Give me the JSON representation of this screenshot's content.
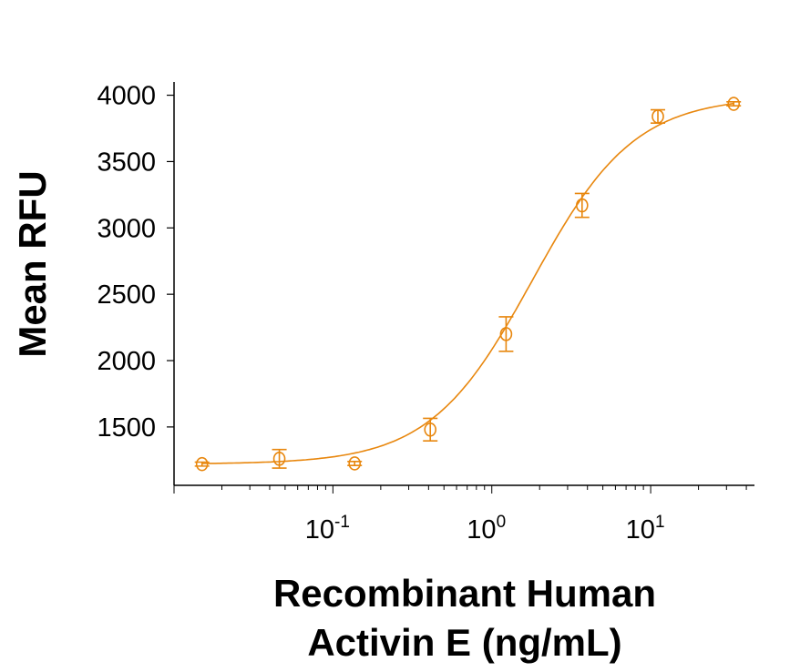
{
  "chart_data": {
    "type": "scatter",
    "xlabel": [
      "Recombinant Human",
      "Activin E (ng/mL)"
    ],
    "ylabel": "Mean RFU",
    "x_scale": "log",
    "xlim": [
      0.01,
      45
    ],
    "ylim": [
      1060,
      4100
    ],
    "x_ticks": [
      {
        "value": 0.1,
        "base": "10",
        "exp": "-1"
      },
      {
        "value": 1,
        "base": "10",
        "exp": "0"
      },
      {
        "value": 10,
        "base": "10",
        "exp": "1"
      }
    ],
    "y_ticks": [
      1500,
      2000,
      2500,
      3000,
      3500,
      4000
    ],
    "grid": false,
    "color": "#E8870E",
    "series": [
      {
        "x": [
          0.015,
          0.046,
          0.137,
          0.41,
          1.23,
          3.7,
          11.1,
          33.3
        ],
        "y": [
          1220,
          1260,
          1225,
          1480,
          2200,
          3170,
          3840,
          3935
        ],
        "error": [
          15,
          70,
          15,
          85,
          130,
          90,
          50,
          15
        ],
        "fit": {
          "model": "4PL",
          "bottom": 1220,
          "top": 3990,
          "ec50": 1.8,
          "hill": 1.35
        }
      }
    ]
  }
}
